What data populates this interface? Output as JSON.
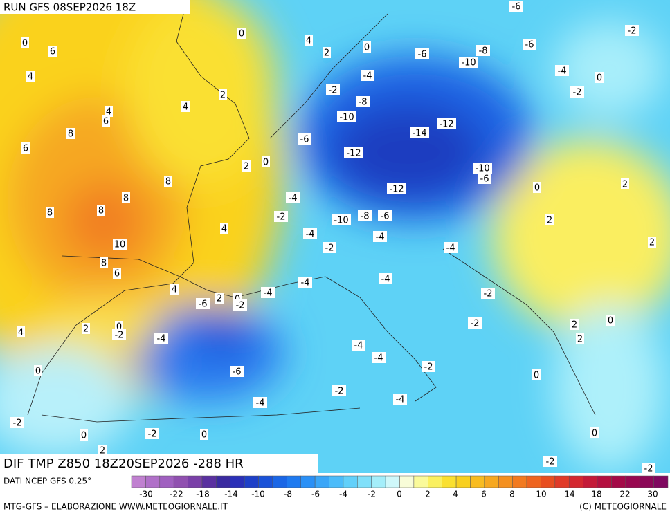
{
  "header": {
    "run": "RUN GFS 08SEP2026 18Z"
  },
  "title": "DIF TMP Z850 18Z20SEP2026 -288 HR",
  "source": "DATI NCEP GFS 0.25°",
  "footer": {
    "left": "MTG-GFS – ELABORAZIONE WWW.METEOGIORNALE.IT",
    "right": "(C) METEOGIORNALE"
  },
  "colorbar": {
    "colors": [
      "#c080d0",
      "#b070c8",
      "#a060c0",
      "#9050b0",
      "#7a40a8",
      "#5a30a0",
      "#3a2aa0",
      "#2a30b8",
      "#1e40c8",
      "#1a52d8",
      "#1a66e6",
      "#1e7af0",
      "#2a90f6",
      "#3aa6f8",
      "#4cbcfa",
      "#62d0fa",
      "#80e0fa",
      "#a4eefa",
      "#cff8fa",
      "#f8fcd8",
      "#fafa9a",
      "#faf060",
      "#fae030",
      "#f8d020",
      "#f8bc20",
      "#f6a820",
      "#f49020",
      "#f27a20",
      "#ee6420",
      "#e84e20",
      "#e03a28",
      "#d42830",
      "#c41a38",
      "#b41040",
      "#a40a48",
      "#980850",
      "#8c0858",
      "#800860"
    ],
    "labels": [
      "-30",
      "-22",
      "-18",
      "-14",
      "-10",
      "-8",
      "-6",
      "-4",
      "-2",
      "0",
      "2",
      "4",
      "6",
      "8",
      "10",
      "14",
      "18",
      "22",
      "30"
    ]
  },
  "map": {
    "labels": [
      "0",
      "6",
      "4",
      "0",
      "4",
      "2",
      "0",
      "-6",
      "-2",
      "-6",
      "-8",
      "-6",
      "-10",
      "-4",
      "0",
      "-4",
      "2",
      "-2",
      "-2",
      "-8",
      "4",
      "4",
      "6",
      "-10",
      "-12",
      "8",
      "-14",
      "6",
      "-6",
      "-12",
      "2",
      "0",
      "-10",
      "-6",
      "8",
      "2",
      "-12",
      "0",
      "-4",
      "8",
      "8",
      "8",
      "-2",
      "-10",
      "-8",
      "-6",
      "2",
      "4",
      "-4",
      "-4",
      "2",
      "-2",
      "10",
      "-4",
      "8",
      "6",
      "-4",
      "-4",
      "4",
      "-4",
      "-2",
      "-6",
      "2",
      "0",
      "-2",
      "-2",
      "2",
      "0",
      "4",
      "2",
      "0",
      "-2",
      "-4",
      "2",
      "-4",
      "-4",
      "-2",
      "0",
      "-6",
      "0",
      "-2",
      "-4",
      "-4",
      "-2",
      "0",
      "-2",
      "0",
      "0",
      "2",
      "-2",
      "-2"
    ]
  }
}
